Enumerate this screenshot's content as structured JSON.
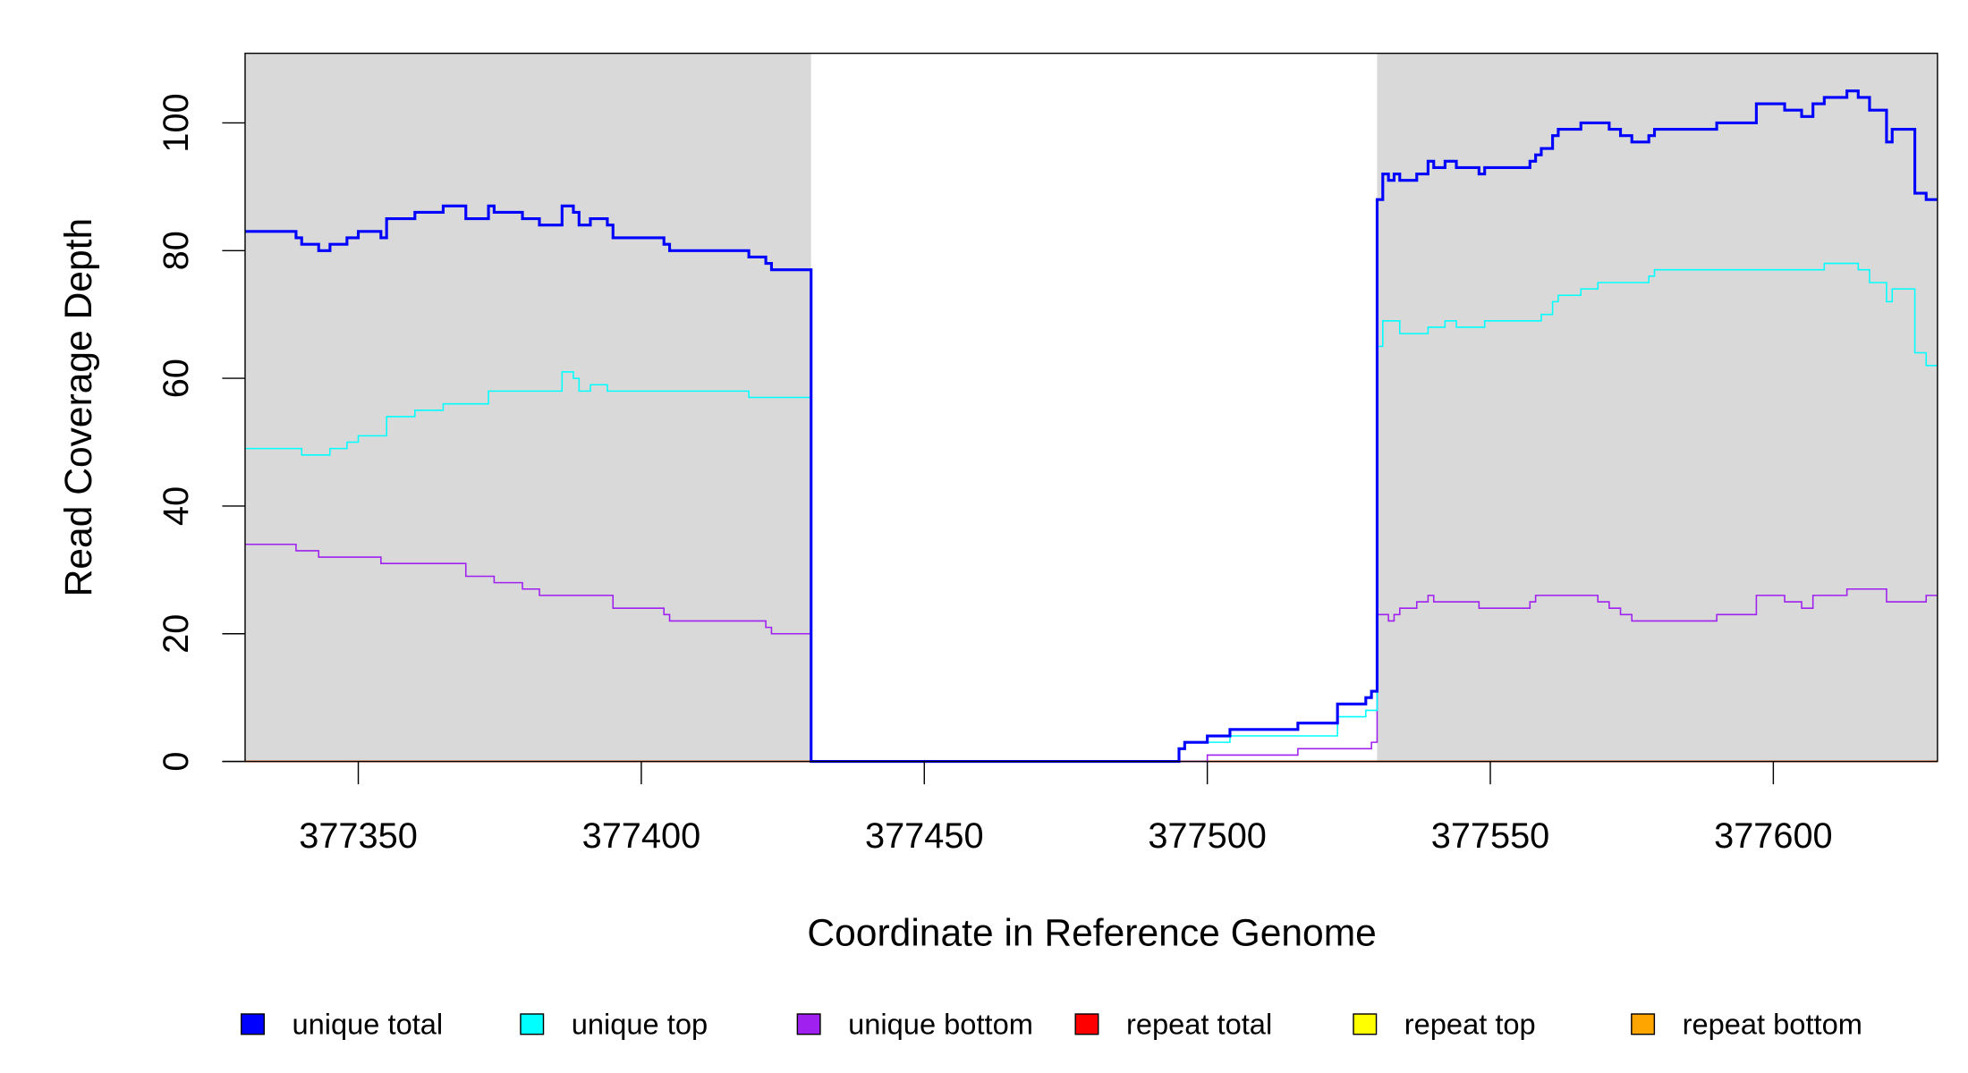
{
  "chart_data": {
    "type": "line",
    "style": "step",
    "title": "",
    "xlabel": "Coordinate in Reference Genome",
    "ylabel": "Read Coverage Depth",
    "xlim": [
      377330,
      377629
    ],
    "ylim": [
      0,
      110
    ],
    "x_ticks": [
      377350,
      377400,
      377450,
      377500,
      377550,
      377600
    ],
    "x_tick_labels": [
      "377350",
      "377400",
      "377450",
      "377500",
      "377550",
      "377600"
    ],
    "y_ticks": [
      0,
      20,
      40,
      60,
      80,
      100
    ],
    "y_tick_labels": [
      "0",
      "20",
      "40",
      "60",
      "80",
      "100"
    ],
    "grid": false,
    "shaded_regions": [
      [
        377330,
        377430
      ],
      [
        377530,
        377629
      ]
    ],
    "shade_color": "#d9d9d9",
    "legend_placement": "bottom",
    "series": [
      {
        "name": "unique total",
        "color": "#0000ff",
        "width": 2.2,
        "steps": [
          [
            377330,
            83
          ],
          [
            377339,
            82
          ],
          [
            377340,
            81
          ],
          [
            377343,
            80
          ],
          [
            377345,
            81
          ],
          [
            377348,
            82
          ],
          [
            377350,
            83
          ],
          [
            377354,
            82
          ],
          [
            377355,
            85
          ],
          [
            377360,
            86
          ],
          [
            377365,
            87
          ],
          [
            377369,
            85
          ],
          [
            377373,
            87
          ],
          [
            377374,
            86
          ],
          [
            377379,
            85
          ],
          [
            377382,
            84
          ],
          [
            377386,
            87
          ],
          [
            377388,
            86
          ],
          [
            377389,
            84
          ],
          [
            377391,
            85
          ],
          [
            377394,
            84
          ],
          [
            377395,
            82
          ],
          [
            377404,
            81
          ],
          [
            377405,
            80
          ],
          [
            377419,
            79
          ],
          [
            377422,
            78
          ],
          [
            377423,
            77
          ],
          [
            377430,
            0
          ],
          [
            377495,
            2
          ],
          [
            377496,
            3
          ],
          [
            377500,
            4
          ],
          [
            377504,
            5
          ],
          [
            377516,
            6
          ],
          [
            377523,
            9
          ],
          [
            377528,
            10
          ],
          [
            377529,
            11
          ],
          [
            377530,
            88
          ],
          [
            377531,
            92
          ],
          [
            377532,
            91
          ],
          [
            377533,
            92
          ],
          [
            377534,
            91
          ],
          [
            377537,
            92
          ],
          [
            377539,
            94
          ],
          [
            377540,
            93
          ],
          [
            377542,
            94
          ],
          [
            377544,
            93
          ],
          [
            377548,
            92
          ],
          [
            377549,
            93
          ],
          [
            377557,
            94
          ],
          [
            377558,
            95
          ],
          [
            377559,
            96
          ],
          [
            377561,
            98
          ],
          [
            377562,
            99
          ],
          [
            377566,
            100
          ],
          [
            377571,
            99
          ],
          [
            377573,
            98
          ],
          [
            377575,
            97
          ],
          [
            377578,
            98
          ],
          [
            377579,
            99
          ],
          [
            377590,
            100
          ],
          [
            377597,
            103
          ],
          [
            377602,
            102
          ],
          [
            377605,
            101
          ],
          [
            377607,
            103
          ],
          [
            377609,
            104
          ],
          [
            377613,
            105
          ],
          [
            377615,
            104
          ],
          [
            377617,
            102
          ],
          [
            377620,
            97
          ],
          [
            377621,
            99
          ],
          [
            377625,
            89
          ],
          [
            377627,
            88
          ]
        ]
      },
      {
        "name": "unique top",
        "color": "#00ffff",
        "width": 1.1,
        "steps": [
          [
            377330,
            49
          ],
          [
            377340,
            48
          ],
          [
            377345,
            49
          ],
          [
            377348,
            50
          ],
          [
            377350,
            51
          ],
          [
            377355,
            54
          ],
          [
            377360,
            55
          ],
          [
            377365,
            56
          ],
          [
            377373,
            58
          ],
          [
            377386,
            61
          ],
          [
            377388,
            60
          ],
          [
            377389,
            58
          ],
          [
            377391,
            59
          ],
          [
            377394,
            58
          ],
          [
            377419,
            57
          ],
          [
            377430,
            0
          ],
          [
            377495,
            2
          ],
          [
            377496,
            3
          ],
          [
            377504,
            4
          ],
          [
            377523,
            7
          ],
          [
            377528,
            8
          ],
          [
            377530,
            65
          ],
          [
            377531,
            69
          ],
          [
            377534,
            67
          ],
          [
            377539,
            68
          ],
          [
            377542,
            69
          ],
          [
            377544,
            68
          ],
          [
            377549,
            69
          ],
          [
            377559,
            70
          ],
          [
            377561,
            72
          ],
          [
            377562,
            73
          ],
          [
            377566,
            74
          ],
          [
            377569,
            75
          ],
          [
            377578,
            76
          ],
          [
            377579,
            77
          ],
          [
            377609,
            78
          ],
          [
            377615,
            77
          ],
          [
            377617,
            75
          ],
          [
            377620,
            72
          ],
          [
            377621,
            74
          ],
          [
            377625,
            64
          ],
          [
            377627,
            62
          ]
        ]
      },
      {
        "name": "unique bottom",
        "color": "#a020f0",
        "width": 1.1,
        "steps": [
          [
            377330,
            34
          ],
          [
            377339,
            33
          ],
          [
            377343,
            32
          ],
          [
            377354,
            31
          ],
          [
            377369,
            29
          ],
          [
            377374,
            28
          ],
          [
            377379,
            27
          ],
          [
            377382,
            26
          ],
          [
            377395,
            24
          ],
          [
            377404,
            23
          ],
          [
            377405,
            22
          ],
          [
            377422,
            21
          ],
          [
            377423,
            20
          ],
          [
            377430,
            0
          ],
          [
            377500,
            1
          ],
          [
            377516,
            2
          ],
          [
            377529,
            3
          ],
          [
            377530,
            23
          ],
          [
            377532,
            22
          ],
          [
            377533,
            23
          ],
          [
            377534,
            24
          ],
          [
            377537,
            25
          ],
          [
            377539,
            26
          ],
          [
            377540,
            25
          ],
          [
            377548,
            24
          ],
          [
            377557,
            25
          ],
          [
            377558,
            26
          ],
          [
            377569,
            25
          ],
          [
            377571,
            24
          ],
          [
            377573,
            23
          ],
          [
            377575,
            22
          ],
          [
            377590,
            23
          ],
          [
            377597,
            26
          ],
          [
            377602,
            25
          ],
          [
            377605,
            24
          ],
          [
            377607,
            26
          ],
          [
            377613,
            27
          ],
          [
            377620,
            25
          ],
          [
            377627,
            26
          ]
        ]
      },
      {
        "name": "repeat total",
        "color": "#ff0000",
        "width": 1.1,
        "steps": [
          [
            377330,
            0
          ]
        ]
      },
      {
        "name": "repeat top",
        "color": "#ffff00",
        "width": 1.1,
        "steps": [
          [
            377330,
            0
          ]
        ]
      },
      {
        "name": "repeat bottom",
        "color": "#ffa500",
        "width": 1.1,
        "steps": [
          [
            377330,
            0
          ]
        ]
      }
    ]
  }
}
